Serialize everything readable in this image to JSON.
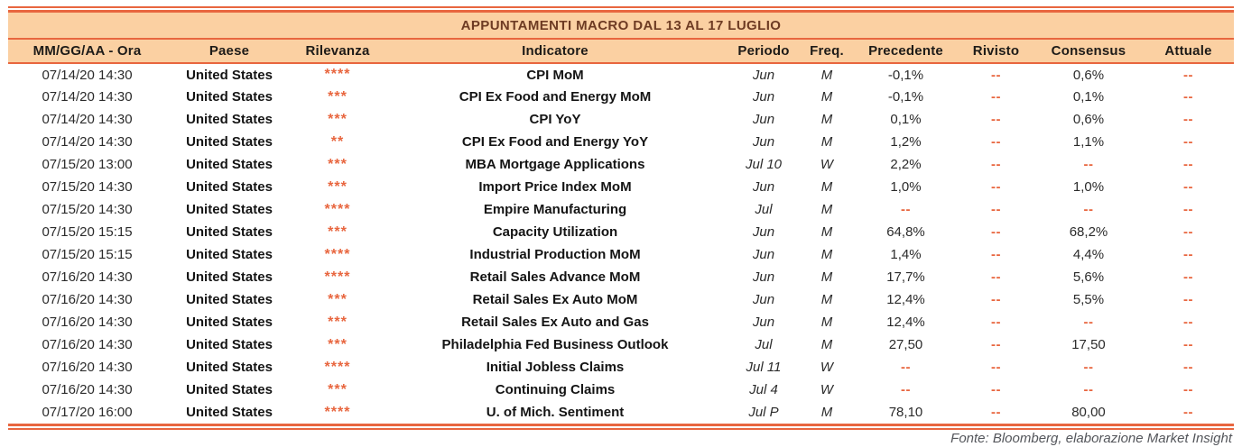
{
  "title": "APPUNTAMENTI MACRO DAL 13 AL 17 LUGLIO",
  "columns": [
    "MM/GG/AA - Ora",
    "Paese",
    "Rilevanza",
    "Indicatore",
    "Periodo",
    "Freq.",
    "Precedente",
    "Rivisto",
    "Consensus",
    "Attuale"
  ],
  "rows": [
    {
      "datetime": "07/14/20 14:30",
      "country": "United States",
      "relevance": "****",
      "indicator": "CPI MoM",
      "period": "Jun",
      "freq": "M",
      "previous": "-0,1%",
      "revised": "--",
      "consensus": "0,6%",
      "actual": "--"
    },
    {
      "datetime": "07/14/20 14:30",
      "country": "United States",
      "relevance": "***",
      "indicator": "CPI Ex Food and Energy MoM",
      "period": "Jun",
      "freq": "M",
      "previous": "-0,1%",
      "revised": "--",
      "consensus": "0,1%",
      "actual": "--"
    },
    {
      "datetime": "07/14/20 14:30",
      "country": "United States",
      "relevance": "***",
      "indicator": "CPI YoY",
      "period": "Jun",
      "freq": "M",
      "previous": "0,1%",
      "revised": "--",
      "consensus": "0,6%",
      "actual": "--"
    },
    {
      "datetime": "07/14/20 14:30",
      "country": "United States",
      "relevance": "**",
      "indicator": "CPI Ex Food and Energy YoY",
      "period": "Jun",
      "freq": "M",
      "previous": "1,2%",
      "revised": "--",
      "consensus": "1,1%",
      "actual": "--"
    },
    {
      "datetime": "07/15/20 13:00",
      "country": "United States",
      "relevance": "***",
      "indicator": "MBA Mortgage Applications",
      "period": "Jul 10",
      "freq": "W",
      "previous": "2,2%",
      "revised": "--",
      "consensus": "--",
      "actual": "--"
    },
    {
      "datetime": "07/15/20 14:30",
      "country": "United States",
      "relevance": "***",
      "indicator": "Import Price Index MoM",
      "period": "Jun",
      "freq": "M",
      "previous": "1,0%",
      "revised": "--",
      "consensus": "1,0%",
      "actual": "--"
    },
    {
      "datetime": "07/15/20 14:30",
      "country": "United States",
      "relevance": "****",
      "indicator": "Empire Manufacturing",
      "period": "Jul",
      "freq": "M",
      "previous": "--",
      "revised": "--",
      "consensus": "--",
      "actual": "--"
    },
    {
      "datetime": "07/15/20 15:15",
      "country": "United States",
      "relevance": "***",
      "indicator": "Capacity Utilization",
      "period": "Jun",
      "freq": "M",
      "previous": "64,8%",
      "revised": "--",
      "consensus": "68,2%",
      "actual": "--"
    },
    {
      "datetime": "07/15/20 15:15",
      "country": "United States",
      "relevance": "****",
      "indicator": "Industrial Production MoM",
      "period": "Jun",
      "freq": "M",
      "previous": "1,4%",
      "revised": "--",
      "consensus": "4,4%",
      "actual": "--"
    },
    {
      "datetime": "07/16/20 14:30",
      "country": "United States",
      "relevance": "****",
      "indicator": "Retail Sales Advance MoM",
      "period": "Jun",
      "freq": "M",
      "previous": "17,7%",
      "revised": "--",
      "consensus": "5,6%",
      "actual": "--"
    },
    {
      "datetime": "07/16/20 14:30",
      "country": "United States",
      "relevance": "***",
      "indicator": "Retail Sales Ex Auto MoM",
      "period": "Jun",
      "freq": "M",
      "previous": "12,4%",
      "revised": "--",
      "consensus": "5,5%",
      "actual": "--"
    },
    {
      "datetime": "07/16/20 14:30",
      "country": "United States",
      "relevance": "***",
      "indicator": "Retail Sales Ex Auto and Gas",
      "period": "Jun",
      "freq": "M",
      "previous": "12,4%",
      "revised": "--",
      "consensus": "--",
      "actual": "--"
    },
    {
      "datetime": "07/16/20 14:30",
      "country": "United States",
      "relevance": "***",
      "indicator": "Philadelphia Fed Business Outlook",
      "period": "Jul",
      "freq": "M",
      "previous": "27,50",
      "revised": "--",
      "consensus": "17,50",
      "actual": "--"
    },
    {
      "datetime": "07/16/20 14:30",
      "country": "United States",
      "relevance": "****",
      "indicator": "Initial Jobless Claims",
      "period": "Jul 11",
      "freq": "W",
      "previous": "--",
      "revised": "--",
      "consensus": "--",
      "actual": "--"
    },
    {
      "datetime": "07/16/20 14:30",
      "country": "United States",
      "relevance": "***",
      "indicator": "Continuing Claims",
      "period": "Jul 4",
      "freq": "W",
      "previous": "--",
      "revised": "--",
      "consensus": "--",
      "actual": "--"
    },
    {
      "datetime": "07/17/20 16:00",
      "country": "United States",
      "relevance": "****",
      "indicator": "U. of Mich. Sentiment",
      "period": "Jul P",
      "freq": "M",
      "previous": "78,10",
      "revised": "--",
      "consensus": "80,00",
      "actual": "--"
    }
  ],
  "footer": "Fonte: Bloomberg, elaborazione Market Insight",
  "colors": {
    "accent": "#E8663F",
    "band_background": "#FBD0A2",
    "title_text": "#6E3B23",
    "header_text": "#1E1B18",
    "body_text": "#2B2B2B",
    "footer_text": "#54565B"
  }
}
